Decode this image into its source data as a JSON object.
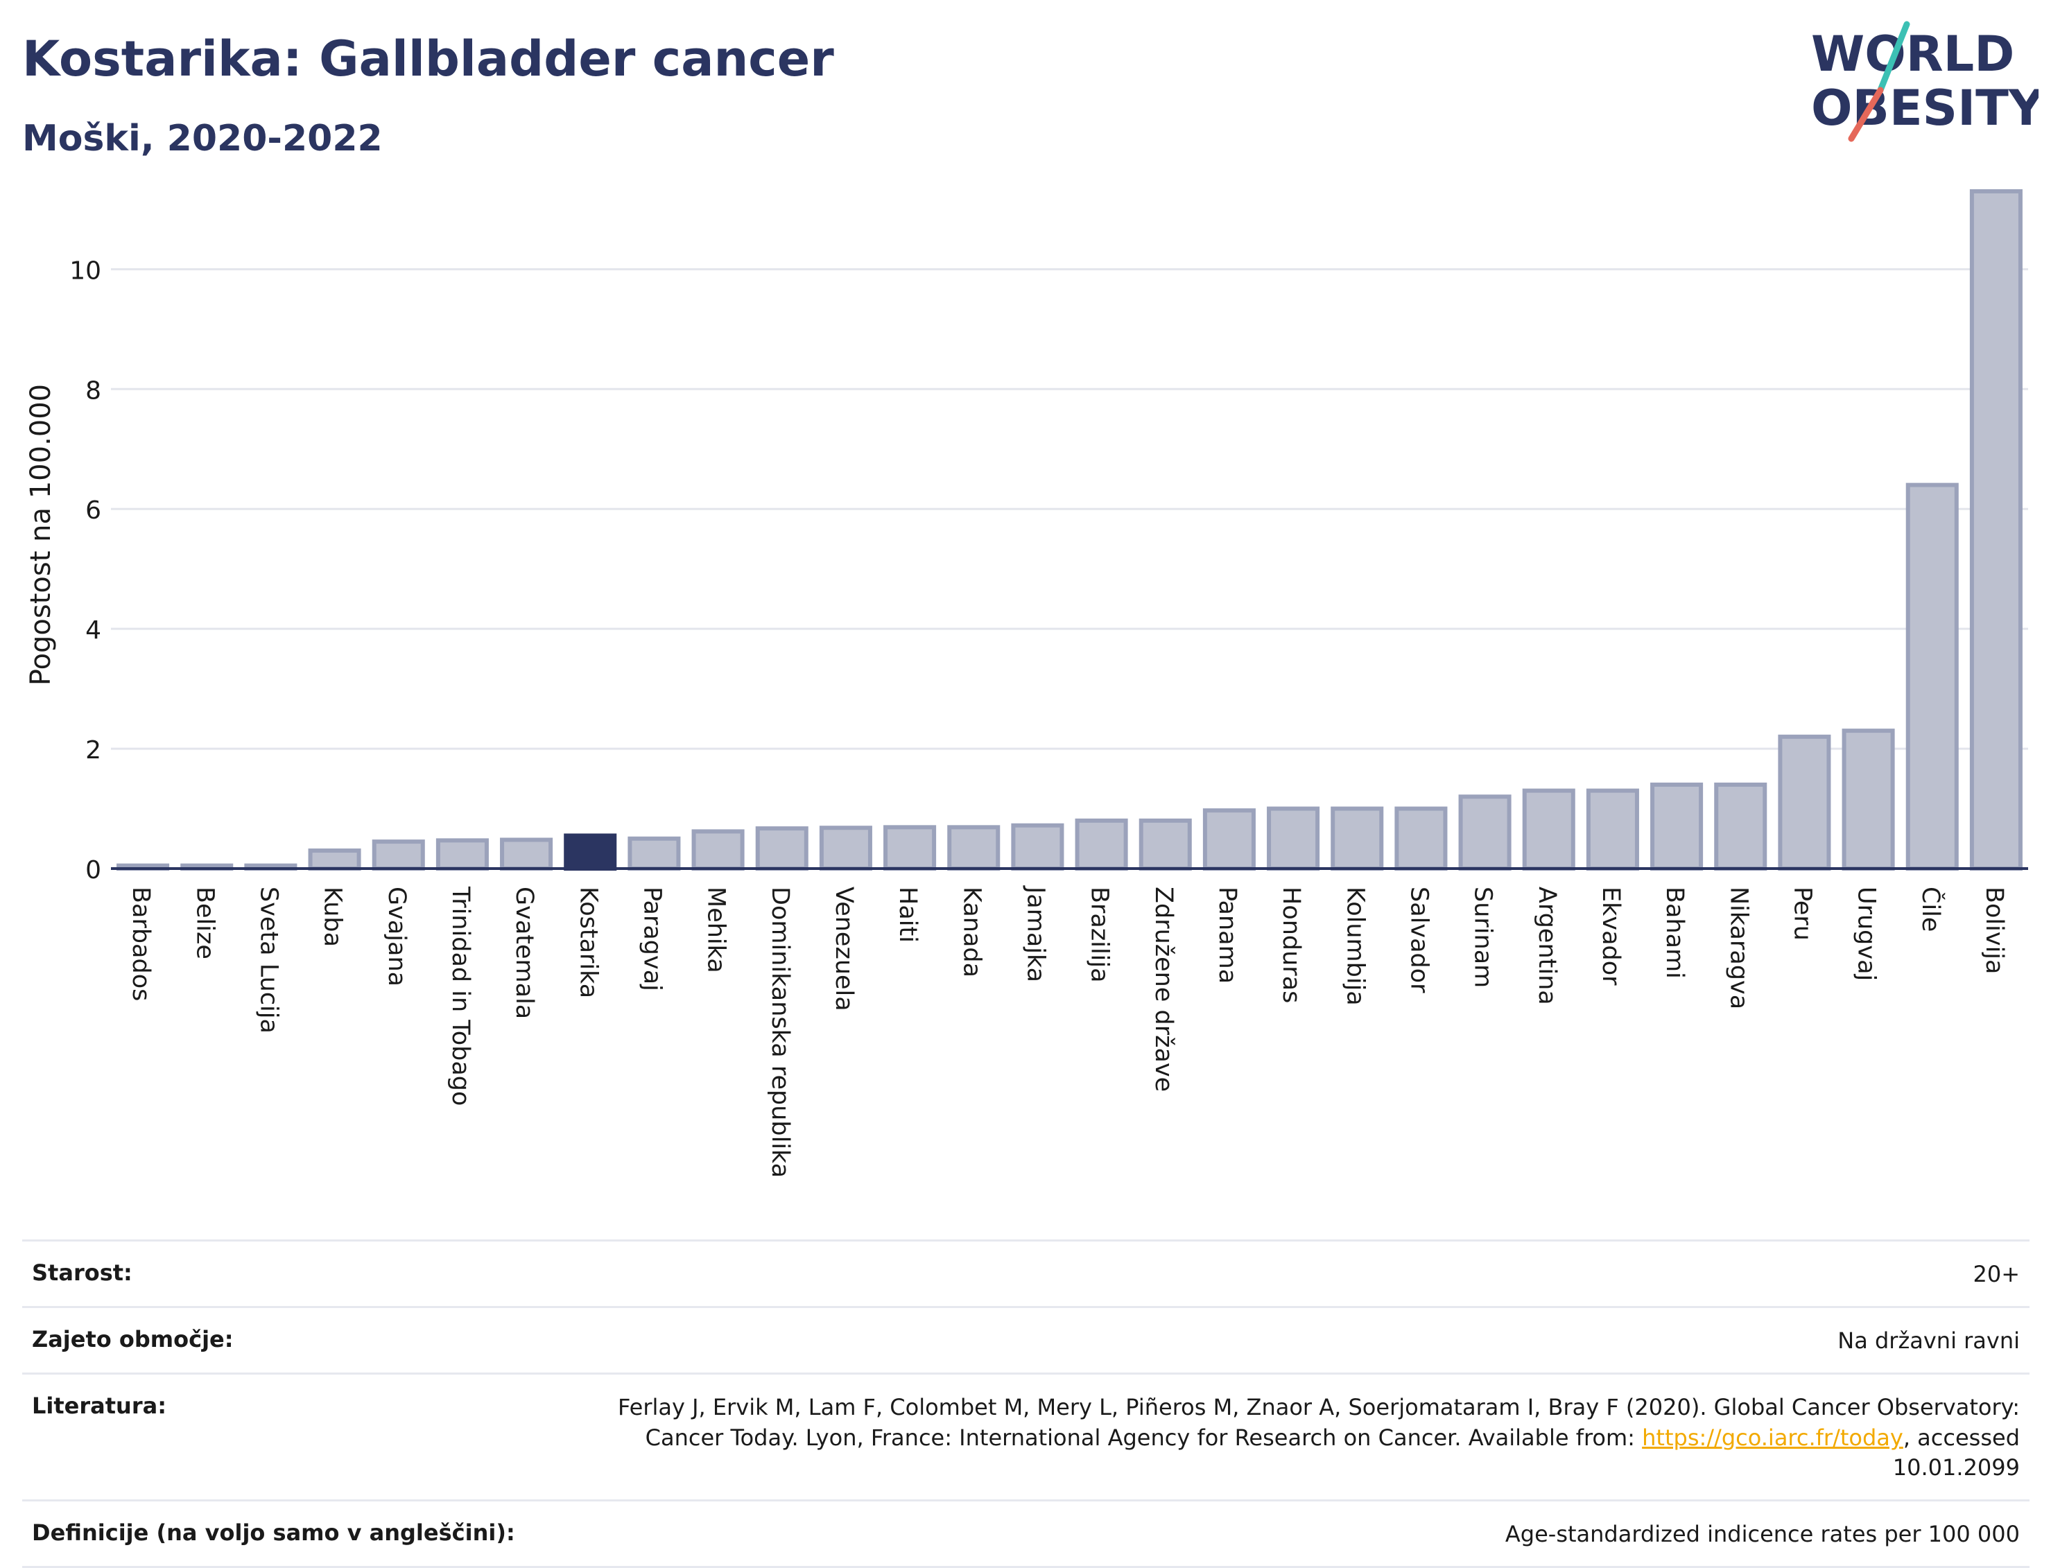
{
  "header": {
    "title": "Kostarika: Gallbladder cancer",
    "subtitle": "Moški, 2020-2022"
  },
  "logo": {
    "line1": "WORLD",
    "line2": "OBESITY"
  },
  "chart_data": {
    "type": "bar",
    "title": "Kostarika: Gallbladder cancer",
    "subtitle": "Moški, 2020-2022",
    "ylabel": "Pogostost na 100.000",
    "xlabel": "",
    "ylim": [
      0,
      11.6
    ],
    "yticks": [
      0,
      2,
      4,
      6,
      8,
      10
    ],
    "grid": true,
    "highlight": "Kostarika",
    "colors": {
      "bar": "#bcc0cf",
      "bar_border": "#9ba2bb",
      "highlight": "#2b3561"
    },
    "categories": [
      "Barbados",
      "Belize",
      "Sveta Lucija",
      "Kuba",
      "Gvajana",
      "Trinidad in Tobago",
      "Gvatemala",
      "Kostarika",
      "Paragvaj",
      "Mehika",
      "Dominikanska republika",
      "Venezuela",
      "Haiti",
      "Kanada",
      "Jamajka",
      "Brazilija",
      "Združene države",
      "Panama",
      "Honduras",
      "Kolumbija",
      "Salvador",
      "Surinam",
      "Argentina",
      "Ekvador",
      "Bahami",
      "Nikaragva",
      "Peru",
      "Urugvaj",
      "Čile",
      "Bolivija"
    ],
    "values": [
      0.05,
      0.05,
      0.05,
      0.3,
      0.45,
      0.47,
      0.48,
      0.55,
      0.5,
      0.62,
      0.67,
      0.68,
      0.69,
      0.69,
      0.72,
      0.8,
      0.8,
      0.97,
      1.0,
      1.0,
      1.0,
      1.2,
      1.3,
      1.3,
      1.4,
      1.4,
      2.2,
      2.3,
      6.4,
      11.3
    ]
  },
  "info": {
    "age_label": "Starost:",
    "age_value": "20+",
    "coverage_label": "Zajeto območje:",
    "coverage_value": "Na državni ravni",
    "lit_label": "Literatura:",
    "lit_text_before": "Ferlay J, Ervik M, Lam F, Colombet M, Mery L, Piñeros M, Znaor A, Soerjomataram I, Bray F (2020). Global Cancer Observatory: Cancer Today. Lyon, France: International Agency for Research on Cancer. Available from: ",
    "lit_link": "https://gco.iarc.fr/today",
    "lit_text_after": ", accessed 10.01.2099",
    "def_label": "Definicije (na voljo samo v angleščini):",
    "def_value": "Age-standardized indicence rates per 100 000"
  }
}
